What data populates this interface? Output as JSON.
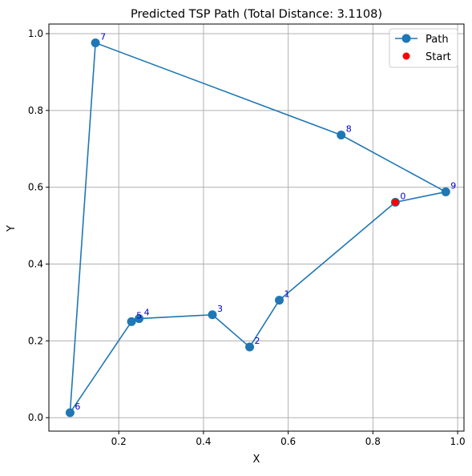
{
  "chart_data": {
    "type": "line",
    "title": "Predicted TSP Path (Total Distance: 3.1108)",
    "xlabel": "X",
    "ylabel": "Y",
    "xlim": [
      0.035,
      1.015
    ],
    "ylim": [
      -0.035,
      1.025
    ],
    "xticks": [
      0.2,
      0.4,
      0.6,
      0.8,
      1.0
    ],
    "xtick_labels": [
      "0.2",
      "0.4",
      "0.6",
      "0.8",
      "1.0"
    ],
    "yticks": [
      0.0,
      0.2,
      0.4,
      0.6,
      0.8,
      1.0
    ],
    "ytick_labels": [
      "0.0",
      "0.2",
      "0.4",
      "0.6",
      "0.8",
      "1.0"
    ],
    "grid": true,
    "legend_position": "top-right",
    "colors": {
      "path": "#1f77b4",
      "start": "#ff0000",
      "labels": "#0000cc",
      "grid": "#b0b0b0"
    },
    "nodes": [
      {
        "id": "0",
        "x": 0.853,
        "y": 0.561
      },
      {
        "id": "1",
        "x": 0.579,
        "y": 0.306
      },
      {
        "id": "2",
        "x": 0.509,
        "y": 0.184
      },
      {
        "id": "3",
        "x": 0.421,
        "y": 0.268
      },
      {
        "id": "4",
        "x": 0.248,
        "y": 0.258
      },
      {
        "id": "5",
        "x": 0.23,
        "y": 0.25
      },
      {
        "id": "6",
        "x": 0.085,
        "y": 0.013
      },
      {
        "id": "7",
        "x": 0.145,
        "y": 0.976
      },
      {
        "id": "8",
        "x": 0.725,
        "y": 0.736
      },
      {
        "id": "9",
        "x": 0.972,
        "y": 0.588
      }
    ],
    "path_order": [
      "0",
      "1",
      "2",
      "3",
      "4",
      "5",
      "6",
      "7",
      "8",
      "9",
      "0"
    ],
    "start": {
      "x": 0.853,
      "y": 0.561
    },
    "series": [
      {
        "name": "Path"
      },
      {
        "name": "Start"
      }
    ]
  }
}
